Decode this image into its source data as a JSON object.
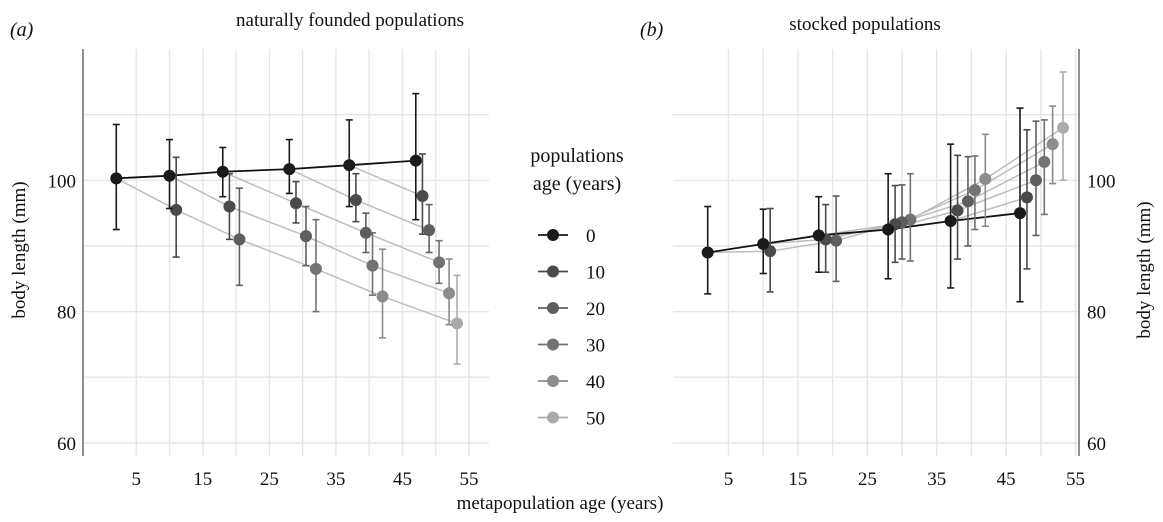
{
  "figure": {
    "xlabel": "metapopulation age (years)",
    "ylabel_left": "body length (mm)",
    "ylabel_right": "body length (mm)"
  },
  "legend": {
    "title_line1": "populations",
    "title_line2": "age (years)",
    "entries": [
      {
        "label": "0",
        "color": "#1a1a1a"
      },
      {
        "label": "10",
        "color": "#4a4a4a"
      },
      {
        "label": "20",
        "color": "#5e5e5e"
      },
      {
        "label": "30",
        "color": "#727272"
      },
      {
        "label": "40",
        "color": "#8c8c8c"
      },
      {
        "label": "50",
        "color": "#ababab"
      }
    ]
  },
  "chart_data": [
    {
      "type": "scatter",
      "panel": "(a)",
      "title": "naturally founded populations",
      "xlabel": "metapopulation age (years)",
      "ylabel": "body length (mm)",
      "xlim": [
        -3,
        58
      ],
      "ylim": [
        58,
        120
      ],
      "xticks": [
        5,
        15,
        25,
        35,
        45,
        55
      ],
      "yticks": [
        60,
        80,
        100
      ],
      "grid": true,
      "trend_line": {
        "x": [
          2,
          10,
          18,
          28,
          37,
          47
        ],
        "y": [
          100.3,
          100.7,
          101.3,
          101.7,
          102.3,
          103.0
        ]
      },
      "series": [
        {
          "name": "0",
          "x": [
            2,
            10,
            18,
            28,
            37,
            47
          ],
          "y": [
            100.3,
            100.7,
            101.3,
            101.7,
            102.3,
            103.0
          ],
          "ylow": [
            92.5,
            95.7,
            97.5,
            98.0,
            96.0,
            94.0
          ],
          "yhigh": [
            108.5,
            106.2,
            105.0,
            106.2,
            109.2,
            113.2
          ]
        },
        {
          "name": "10",
          "x": [
            11,
            19,
            29,
            38,
            48
          ],
          "y": [
            95.5,
            96.0,
            96.5,
            97.0,
            97.6
          ],
          "ylow": [
            88.3,
            91.0,
            93.5,
            93.7,
            91.8
          ],
          "yhigh": [
            103.5,
            101.0,
            99.8,
            101.0,
            104.0
          ]
        },
        {
          "name": "20",
          "x": [
            20.5,
            30.5,
            39.5,
            49
          ],
          "y": [
            91.0,
            91.5,
            92.0,
            92.4
          ],
          "ylow": [
            84.0,
            87.0,
            89.0,
            89.0
          ],
          "yhigh": [
            98.8,
            96.0,
            95.0,
            96.3
          ]
        },
        {
          "name": "30",
          "x": [
            32,
            40.5,
            50.5
          ],
          "y": [
            86.5,
            87.0,
            87.5
          ],
          "ylow": [
            80.0,
            82.5,
            84.3
          ],
          "yhigh": [
            94.0,
            92.0,
            90.8
          ]
        },
        {
          "name": "40",
          "x": [
            42,
            52
          ],
          "y": [
            82.3,
            82.8
          ],
          "ylow": [
            76.0,
            78.0
          ],
          "yhigh": [
            89.5,
            88.0
          ]
        },
        {
          "name": "50",
          "x": [
            53.2
          ],
          "y": [
            78.2
          ],
          "ylow": [
            72.0
          ],
          "yhigh": [
            85.5
          ]
        }
      ]
    },
    {
      "type": "scatter",
      "panel": "(b)",
      "title": "stocked populations",
      "xlabel": "metapopulation age (years)",
      "ylabel": "body length (mm)",
      "xlim": [
        -3,
        55.5
      ],
      "ylim": [
        58,
        120
      ],
      "xticks": [
        5,
        15,
        25,
        35,
        45,
        55
      ],
      "yticks": [
        60,
        80,
        100
      ],
      "grid": true,
      "trend_line": {
        "x": [
          2,
          10,
          18,
          28,
          37,
          47
        ],
        "y": [
          89.0,
          90.3,
          91.6,
          92.5,
          93.8,
          95.0
        ]
      },
      "series": [
        {
          "name": "0",
          "x": [
            2,
            10,
            18,
            28,
            37,
            47
          ],
          "y": [
            89.0,
            90.3,
            91.6,
            92.5,
            93.8,
            95.0
          ],
          "ylow": [
            82.7,
            85.8,
            86.0,
            85.0,
            83.6,
            81.5
          ],
          "yhigh": [
            96.0,
            95.6,
            97.5,
            101.0,
            105.5,
            111.0
          ]
        },
        {
          "name": "10",
          "x": [
            11,
            19,
            29,
            38,
            48
          ],
          "y": [
            89.2,
            91.0,
            93.3,
            95.4,
            97.4
          ],
          "ylow": [
            83.0,
            86.0,
            87.5,
            88.0,
            86.5
          ],
          "yhigh": [
            95.7,
            96.3,
            99.2,
            103.8,
            107.7
          ]
        },
        {
          "name": "20",
          "x": [
            20.5,
            30,
            39.5,
            49.3
          ],
          "y": [
            90.8,
            93.6,
            96.8,
            100.0
          ],
          "ylow": [
            84.6,
            88.0,
            90.0,
            91.6
          ],
          "yhigh": [
            97.6,
            99.3,
            103.6,
            109.0
          ]
        },
        {
          "name": "30",
          "x": [
            31.2,
            40.5,
            50.5
          ],
          "y": [
            94.0,
            98.5,
            102.8
          ],
          "ylow": [
            87.7,
            92.5,
            94.8
          ],
          "yhigh": [
            101.0,
            103.7,
            109.2
          ]
        },
        {
          "name": "40",
          "x": [
            42,
            51.7
          ],
          "y": [
            100.2,
            105.5
          ],
          "ylow": [
            93.0,
            99.5
          ],
          "yhigh": [
            107.0,
            111.3
          ]
        },
        {
          "name": "50",
          "x": [
            53.2
          ],
          "y": [
            108.0
          ],
          "ylow": [
            100.0
          ],
          "yhigh": [
            116.5
          ]
        }
      ]
    }
  ]
}
